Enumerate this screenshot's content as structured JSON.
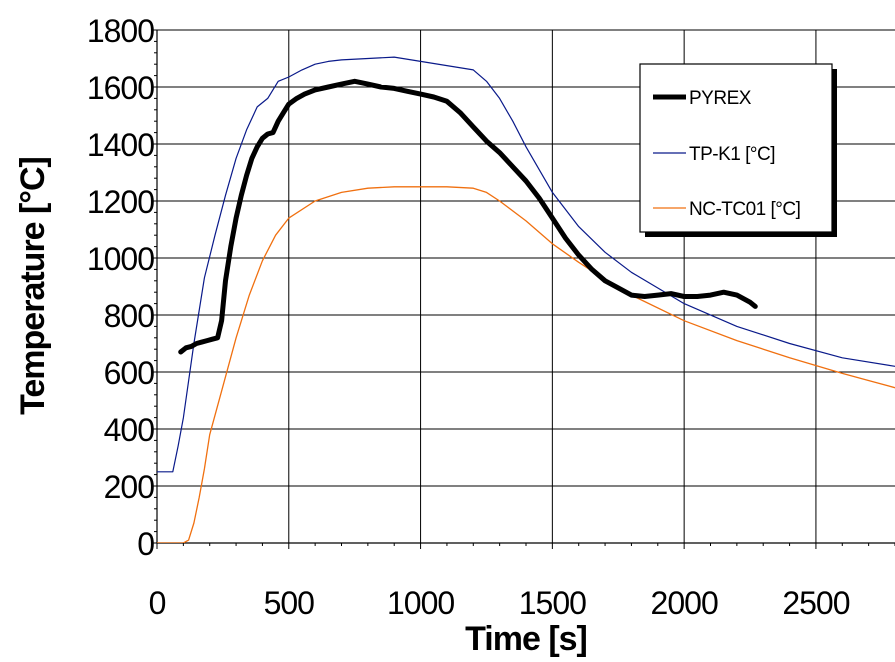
{
  "chart_data": {
    "type": "line",
    "title": "",
    "xlabel": "Time [s]",
    "ylabel": "Temperature [°C]",
    "xlim": [
      0,
      2800
    ],
    "ylim": [
      0,
      1800
    ],
    "x_ticks": [
      0,
      500,
      1000,
      1500,
      2000,
      2500
    ],
    "y_ticks": [
      0,
      200,
      400,
      600,
      800,
      1000,
      1200,
      1400,
      1600,
      1800
    ],
    "grid": true,
    "legend_position": "top-right",
    "series": [
      {
        "name": "PYREX",
        "color": "#000000",
        "x": [
          90,
          110,
          130,
          150,
          170,
          190,
          210,
          230,
          245,
          260,
          280,
          300,
          320,
          340,
          360,
          380,
          400,
          420,
          440,
          450,
          460,
          480,
          500,
          530,
          560,
          600,
          650,
          700,
          750,
          800,
          850,
          900,
          950,
          1000,
          1050,
          1100,
          1150,
          1200,
          1250,
          1300,
          1350,
          1400,
          1450,
          1500,
          1550,
          1600,
          1650,
          1700,
          1750,
          1800,
          1850,
          1900,
          1950,
          2000,
          2050,
          2100,
          2150,
          2200,
          2250,
          2270
        ],
        "y": [
          670,
          685,
          690,
          700,
          705,
          710,
          715,
          720,
          780,
          920,
          1040,
          1140,
          1220,
          1290,
          1350,
          1390,
          1420,
          1435,
          1440,
          1460,
          1480,
          1510,
          1540,
          1560,
          1575,
          1590,
          1600,
          1610,
          1620,
          1610,
          1600,
          1595,
          1585,
          1575,
          1565,
          1550,
          1510,
          1460,
          1410,
          1370,
          1320,
          1270,
          1210,
          1140,
          1070,
          1010,
          960,
          920,
          895,
          870,
          865,
          870,
          875,
          865,
          865,
          870,
          880,
          870,
          845,
          830
        ]
      },
      {
        "name": "TP-K1 [°C]",
        "color": "#0a1a8a",
        "x": [
          0,
          60,
          80,
          100,
          140,
          180,
          220,
          260,
          300,
          340,
          380,
          420,
          460,
          500,
          550,
          600,
          650,
          700,
          800,
          900,
          1000,
          1100,
          1200,
          1250,
          1300,
          1350,
          1400,
          1500,
          1600,
          1700,
          1800,
          2000,
          2200,
          2400,
          2600,
          2800
        ],
        "y": [
          250,
          250,
          340,
          440,
          700,
          930,
          1080,
          1220,
          1350,
          1450,
          1530,
          1560,
          1620,
          1635,
          1660,
          1680,
          1690,
          1695,
          1700,
          1705,
          1690,
          1675,
          1660,
          1620,
          1560,
          1480,
          1390,
          1230,
          1110,
          1020,
          950,
          840,
          760,
          700,
          650,
          620
        ]
      },
      {
        "name": "NC-TC01 [°C]",
        "color": "#f07010",
        "x": [
          0,
          100,
          120,
          140,
          160,
          180,
          200,
          250,
          300,
          350,
          400,
          450,
          500,
          600,
          700,
          800,
          900,
          1000,
          1100,
          1200,
          1250,
          1300,
          1400,
          1500,
          1600,
          1700,
          1800,
          2000,
          2200,
          2400,
          2600,
          2800
        ],
        "y": [
          0,
          0,
          10,
          70,
          160,
          260,
          380,
          550,
          720,
          870,
          990,
          1080,
          1140,
          1200,
          1230,
          1245,
          1250,
          1250,
          1250,
          1245,
          1230,
          1200,
          1130,
          1050,
          985,
          925,
          870,
          780,
          710,
          650,
          595,
          545
        ]
      }
    ]
  }
}
